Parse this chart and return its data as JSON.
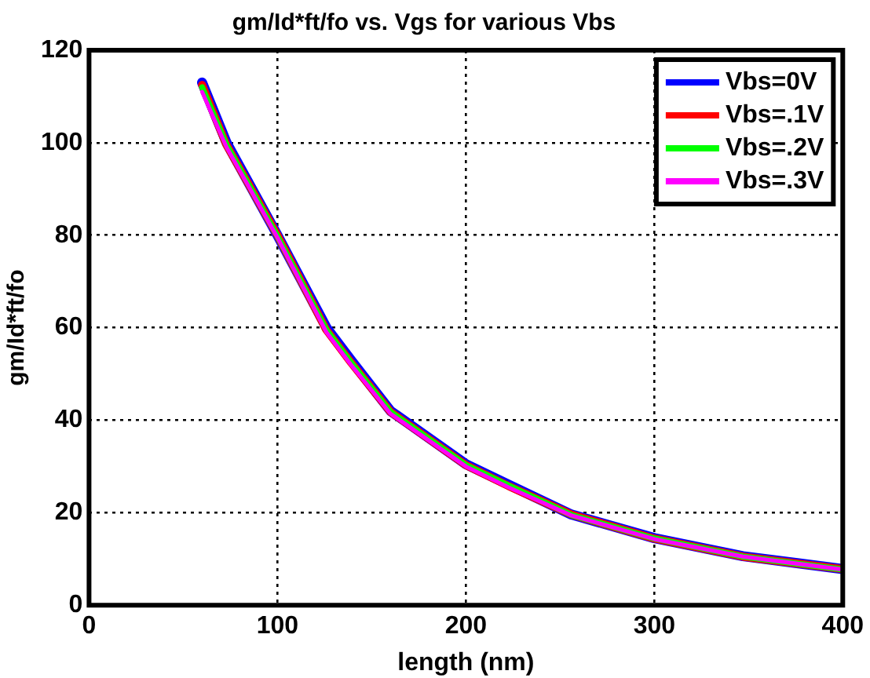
{
  "chart_data": {
    "type": "line",
    "title": "gm/Id*ft/fo vs. Vgs for various Vbs",
    "xlabel": "length (nm)",
    "ylabel": "gm/Id*ft/fo",
    "xlim": [
      0,
      400
    ],
    "xticks": [
      0,
      100,
      200,
      300,
      400
    ],
    "ylim": [
      0,
      120
    ],
    "yticks": [
      0,
      20,
      40,
      60,
      80,
      100,
      120
    ],
    "grid": true,
    "legend": "top right",
    "line_style": "solid",
    "marker": "none",
    "x": [
      60,
      73,
      100,
      126,
      139,
      160,
      200,
      223,
      256,
      300,
      347,
      400
    ],
    "series": [
      {
        "name": "Vbs=0V",
        "color": "#0000ff",
        "values": [
          113,
          100,
          80,
          60,
          53,
          42,
          30.5,
          26,
          19.6,
          14.5,
          10.6,
          7.8
        ]
      },
      {
        "name": "Vbs=.1V",
        "color": "#ff0000",
        "values": [
          112.5,
          99.5,
          80,
          59.5,
          52.5,
          41.8,
          30.3,
          25.7,
          19.6,
          14.4,
          10.5,
          7.8
        ]
      },
      {
        "name": "Vbs=.2V",
        "color": "#00ff00",
        "values": [
          112,
          99.5,
          79.8,
          59.5,
          52.5,
          41.8,
          30.3,
          25.8,
          19.5,
          14.4,
          10.5,
          7.7
        ]
      },
      {
        "name": "Vbs=.3V",
        "color": "#ff00ff",
        "values": [
          111,
          99,
          79.5,
          59,
          52,
          41.4,
          30,
          25.4,
          19.4,
          14.3,
          10.5,
          7.7
        ]
      }
    ]
  }
}
